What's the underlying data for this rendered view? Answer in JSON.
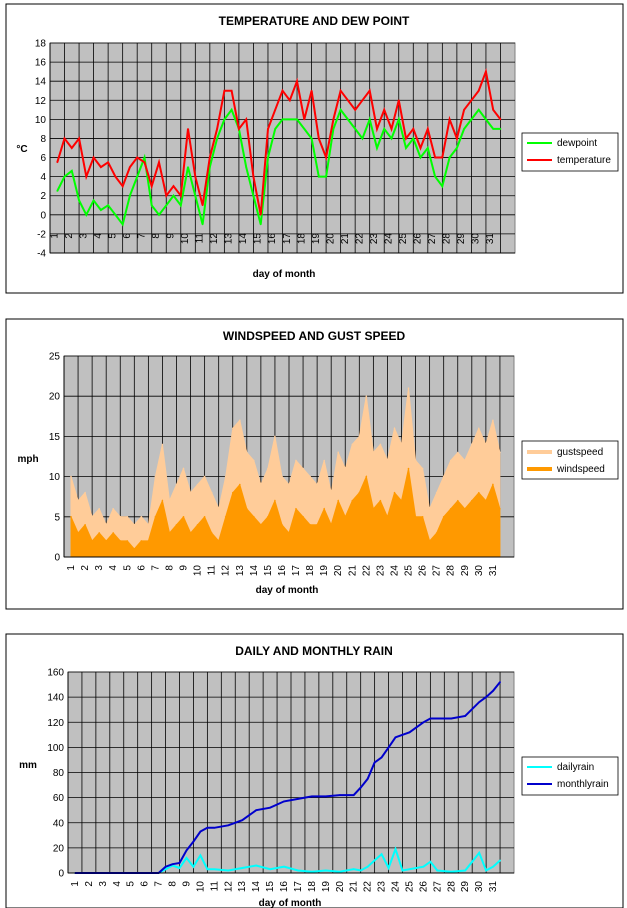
{
  "chart_data": [
    {
      "type": "line",
      "title": "TEMPERATURE AND DEW POINT",
      "xlabel": "day of month",
      "ylabel": "°C",
      "ylim": [
        -4,
        18
      ],
      "yticks": [
        -4,
        -2,
        0,
        2,
        4,
        6,
        8,
        10,
        12,
        14,
        16,
        18
      ],
      "categories": [
        "1",
        "2",
        "3",
        "4",
        "5",
        "6",
        "7",
        "8",
        "9",
        "10",
        "11",
        "12",
        "13",
        "14",
        "15",
        "16",
        "17",
        "18",
        "19",
        "20",
        "21",
        "22",
        "23",
        "24",
        "25",
        "26",
        "27",
        "28",
        "29",
        "30",
        "31"
      ],
      "series": [
        {
          "name": "dewpoint",
          "color": "#00ff00",
          "x": [
            1,
            1.5,
            2,
            2.5,
            3,
            3.5,
            4,
            4.5,
            5,
            5.5,
            6,
            6.5,
            7,
            7.5,
            8,
            8.5,
            9,
            9.5,
            10,
            10.5,
            11,
            11.5,
            12,
            12.5,
            13,
            13.5,
            14,
            14.5,
            15,
            15.5,
            16,
            16.5,
            17,
            17.5,
            18,
            18.5,
            19,
            19.5,
            20,
            20.5,
            21,
            21.5,
            22,
            22.5,
            23,
            23.5,
            24,
            24.5,
            25,
            25.5,
            26,
            26.5,
            27,
            27.5,
            28,
            28.5,
            29,
            29.5,
            30,
            30.5,
            31,
            31.5
          ],
          "values": [
            2.5,
            4,
            4.6,
            1.5,
            0,
            1.5,
            0.5,
            1,
            0,
            -1,
            2,
            4,
            6,
            1,
            0,
            1,
            2,
            1,
            5,
            2,
            -1,
            5,
            8,
            10,
            11,
            9,
            5,
            2,
            -1,
            6,
            9,
            10,
            10,
            10,
            9,
            8,
            4,
            4,
            9,
            11,
            10,
            9,
            8,
            10,
            7,
            9,
            8,
            10,
            7,
            8,
            6,
            7,
            4,
            3,
            6,
            7,
            9,
            10,
            11,
            10,
            9,
            9
          ]
        },
        {
          "name": "temperature",
          "color": "#ff0000",
          "x": [
            1,
            1.5,
            2,
            2.5,
            3,
            3.5,
            4,
            4.5,
            5,
            5.5,
            6,
            6.5,
            7,
            7.5,
            8,
            8.5,
            9,
            9.5,
            10,
            10.5,
            11,
            11.5,
            12,
            12.5,
            13,
            13.5,
            14,
            14.5,
            15,
            15.5,
            16,
            16.5,
            17,
            17.5,
            18,
            18.5,
            19,
            19.5,
            20,
            20.5,
            21,
            21.5,
            22,
            22.5,
            23,
            23.5,
            24,
            24.5,
            25,
            25.5,
            26,
            26.5,
            27,
            27.5,
            28,
            28.5,
            29,
            29.5,
            30,
            30.5,
            31,
            31.5
          ],
          "values": [
            5.5,
            8,
            7,
            8,
            4,
            6,
            5,
            5.5,
            4,
            3,
            5,
            6,
            5.5,
            3,
            5.5,
            2,
            3,
            2,
            9,
            4,
            1,
            6,
            9,
            13,
            13,
            9,
            10,
            4,
            0,
            9,
            11,
            13,
            12,
            14,
            10,
            13,
            8,
            6,
            10,
            13,
            12,
            11,
            12,
            13,
            9,
            11,
            9,
            12,
            8,
            9,
            7,
            9,
            6,
            6,
            10,
            8,
            11,
            12,
            13,
            15,
            11,
            10
          ]
        }
      ],
      "legend": "right"
    },
    {
      "type": "area",
      "title": "WINDSPEED AND GUST SPEED",
      "xlabel": "day of month",
      "ylabel": "mph",
      "ylim": [
        0,
        25
      ],
      "yticks": [
        0,
        5,
        10,
        15,
        20,
        25
      ],
      "categories": [
        "1",
        "2",
        "3",
        "4",
        "5",
        "6",
        "7",
        "8",
        "9",
        "10",
        "11",
        "12",
        "13",
        "14",
        "15",
        "16",
        "17",
        "18",
        "19",
        "20",
        "21",
        "22",
        "23",
        "24",
        "25",
        "26",
        "27",
        "28",
        "29",
        "30",
        "31"
      ],
      "series": [
        {
          "name": "gustspeed",
          "color": "#ffcc99",
          "x": [
            1,
            1.5,
            2,
            2.5,
            3,
            3.5,
            4,
            4.5,
            5,
            5.5,
            6,
            6.5,
            7,
            7.5,
            8,
            8.5,
            9,
            9.5,
            10,
            10.5,
            11,
            11.5,
            12,
            12.5,
            13,
            13.5,
            14,
            14.5,
            15,
            15.5,
            16,
            16.5,
            17,
            17.5,
            18,
            18.5,
            19,
            19.5,
            20,
            20.5,
            21,
            21.5,
            22,
            22.5,
            23,
            23.5,
            24,
            24.5,
            25,
            25.5,
            26,
            26.5,
            27,
            27.5,
            28,
            28.5,
            29,
            29.5,
            30,
            30.5,
            31,
            31.5
          ],
          "values": [
            10,
            7,
            8,
            5,
            6,
            4,
            6,
            5,
            5,
            4,
            5,
            4,
            10,
            14,
            7,
            9,
            11,
            8,
            9,
            10,
            8,
            6,
            10,
            16,
            17,
            13,
            12,
            9,
            11,
            15,
            10,
            9,
            12,
            11,
            10,
            9,
            12,
            8,
            13,
            11,
            14,
            15,
            20,
            13,
            14,
            12,
            16,
            14,
            21,
            12,
            11,
            6,
            8,
            10,
            12,
            13,
            12,
            14,
            16,
            14,
            17,
            13
          ]
        },
        {
          "name": "windspeed",
          "color": "#ff9900",
          "x": [
            1,
            1.5,
            2,
            2.5,
            3,
            3.5,
            4,
            4.5,
            5,
            5.5,
            6,
            6.5,
            7,
            7.5,
            8,
            8.5,
            9,
            9.5,
            10,
            10.5,
            11,
            11.5,
            12,
            12.5,
            13,
            13.5,
            14,
            14.5,
            15,
            15.5,
            16,
            16.5,
            17,
            17.5,
            18,
            18.5,
            19,
            19.5,
            20,
            20.5,
            21,
            21.5,
            22,
            22.5,
            23,
            23.5,
            24,
            24.5,
            25,
            25.5,
            26,
            26.5,
            27,
            27.5,
            28,
            28.5,
            29,
            29.5,
            30,
            30.5,
            31,
            31.5
          ],
          "values": [
            5,
            3,
            4,
            2,
            3,
            2,
            3,
            2,
            2,
            1,
            2,
            2,
            5,
            7,
            3,
            4,
            5,
            3,
            4,
            5,
            3,
            2,
            5,
            8,
            9,
            6,
            5,
            4,
            5,
            7,
            4,
            3,
            6,
            5,
            4,
            4,
            6,
            4,
            7,
            5,
            7,
            8,
            10,
            6,
            7,
            5,
            8,
            7,
            11,
            5,
            5,
            2,
            3,
            5,
            6,
            7,
            6,
            7,
            8,
            7,
            9,
            6
          ]
        }
      ],
      "legend": "right"
    },
    {
      "type": "line",
      "title": "DAILY AND MONTHLY RAIN",
      "xlabel": "day of month",
      "ylabel": "mm",
      "ylim": [
        0,
        160
      ],
      "yticks": [
        0,
        20,
        40,
        60,
        80,
        100,
        120,
        140,
        160
      ],
      "categories": [
        "1",
        "2",
        "3",
        "4",
        "5",
        "6",
        "7",
        "8",
        "9",
        "10",
        "11",
        "12",
        "13",
        "14",
        "15",
        "16",
        "17",
        "18",
        "19",
        "20",
        "21",
        "22",
        "23",
        "24",
        "25",
        "26",
        "27",
        "28",
        "29",
        "30",
        "31"
      ],
      "series": [
        {
          "name": "dailyrain",
          "color": "#00ffff",
          "x": [
            1,
            2,
            3,
            4,
            5,
            6,
            7,
            7.5,
            8,
            8.5,
            9,
            9.5,
            10,
            10.5,
            11,
            12,
            13,
            14,
            15,
            16,
            17,
            18,
            19,
            20,
            21,
            21.5,
            22,
            22.5,
            23,
            23.5,
            24,
            24.5,
            25,
            26,
            26.5,
            27,
            28,
            29,
            30,
            30.5,
            31,
            31.5
          ],
          "values": [
            0,
            0,
            0,
            0,
            0,
            0,
            0,
            3,
            6,
            4,
            12,
            5,
            14,
            3,
            3,
            2,
            4,
            6,
            3,
            5,
            2,
            1,
            2,
            1,
            3,
            2,
            5,
            10,
            15,
            4,
            19,
            2,
            3,
            5,
            9,
            2,
            1,
            2,
            16,
            2,
            5,
            10
          ]
        },
        {
          "name": "monthlyrain",
          "color": "#0000cc",
          "x": [
            1,
            2,
            3,
            4,
            5,
            6,
            7,
            7.5,
            8,
            8.5,
            9,
            9.5,
            10,
            10.5,
            11,
            12,
            13,
            14,
            15,
            16,
            17,
            18,
            19,
            20,
            21,
            21.5,
            22,
            22.5,
            23,
            23.5,
            24,
            24.5,
            25,
            26,
            26.5,
            27,
            28,
            29,
            30,
            30.5,
            31,
            31.5
          ],
          "values": [
            0,
            0,
            0,
            0,
            0,
            0,
            0,
            5,
            7,
            8,
            18,
            25,
            33,
            36,
            36,
            38,
            42,
            50,
            52,
            57,
            59,
            61,
            61,
            62,
            62,
            68,
            75,
            88,
            92,
            100,
            108,
            110,
            112,
            120,
            123,
            123,
            123,
            125,
            136,
            140,
            145,
            152
          ]
        }
      ],
      "legend": "right"
    }
  ]
}
